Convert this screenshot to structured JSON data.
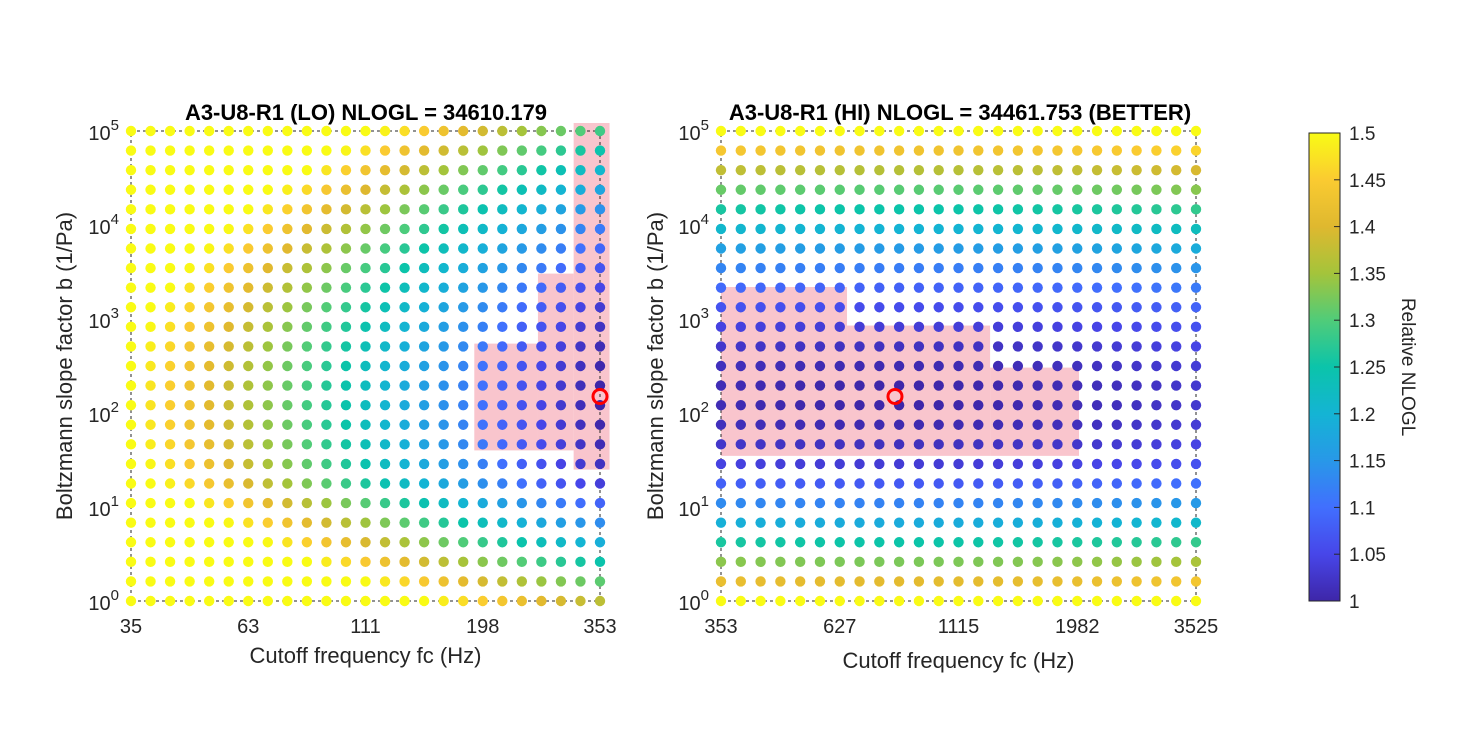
{
  "chart_data": [
    {
      "type": "scatter",
      "title": "A3-U8-R1 (LO) NLOGL = 34610.179",
      "xlabel": "Cutoff frequency fc (Hz)",
      "ylabel": "Boltzmann slope factor b (1/Pa)",
      "x_scale": "log",
      "y_scale": "log",
      "xlim": [
        35,
        353
      ],
      "ylim": [
        1,
        100000
      ],
      "x_ticks": [
        "35",
        "63",
        "111",
        "198",
        "353"
      ],
      "y_ticks": [
        {
          "base": "10",
          "exp": "0"
        },
        {
          "base": "10",
          "exp": "1"
        },
        {
          "base": "10",
          "exp": "2"
        },
        {
          "base": "10",
          "exp": "3"
        },
        {
          "base": "10",
          "exp": "4"
        },
        {
          "base": "10",
          "exp": "5"
        }
      ],
      "grid_points_x": 25,
      "grid_points_y": 25,
      "color_model": {
        "min_value": 1.0,
        "max_value": 1.5,
        "x_weight": 0.5,
        "b_optimum": 150,
        "b_weight": 0.09,
        "low_b_extra": 0.2,
        "fc_optimum": 353
      },
      "confidence_region": [
        {
          "x_range": [
            190,
            260
          ],
          "y_range": [
            40,
            450
          ]
        },
        {
          "x_range": [
            260,
            310
          ],
          "y_range": [
            40,
            2500
          ]
        },
        {
          "x_range": [
            310,
            370
          ],
          "y_range": [
            25,
            100000
          ]
        }
      ],
      "best_fit": {
        "x": 353,
        "y": 150
      },
      "grid": false
    },
    {
      "type": "scatter",
      "title": "A3-U8-R1 (HI) NLOGL = 34461.753 (BETTER)",
      "xlabel": "Cutoff frequency fc (Hz)",
      "ylabel": "Boltzmann slope factor b (1/Pa)",
      "x_scale": "log",
      "y_scale": "log",
      "xlim": [
        353,
        3525
      ],
      "ylim": [
        1,
        100000
      ],
      "x_ticks": [
        "353",
        "627",
        "1115",
        "1982",
        "3525"
      ],
      "y_ticks": [
        {
          "base": "10",
          "exp": "0"
        },
        {
          "base": "10",
          "exp": "1"
        },
        {
          "base": "10",
          "exp": "2"
        },
        {
          "base": "10",
          "exp": "3"
        },
        {
          "base": "10",
          "exp": "4"
        },
        {
          "base": "10",
          "exp": "5"
        }
      ],
      "grid_points_x": 25,
      "grid_points_y": 25,
      "color_model": {
        "min_value": 1.0,
        "max_value": 1.5,
        "fc_optimum": 820,
        "fc_weight": 0.018,
        "b_optimum": 150,
        "b_weight": 0.07,
        "low_b_extra": 0.2
      },
      "confidence_region": [
        {
          "x_range": [
            353,
            650
          ],
          "y_range": [
            35,
            1800
          ]
        },
        {
          "x_range": [
            650,
            1300
          ],
          "y_range": [
            35,
            700
          ]
        },
        {
          "x_range": [
            1300,
            2000
          ],
          "y_range": [
            35,
            250
          ]
        }
      ],
      "best_fit": {
        "x": 820,
        "y": 150
      },
      "grid": false
    }
  ],
  "colorbar": {
    "label": "Relative NLOGL",
    "ticks": [
      "1",
      "1.05",
      "1.1",
      "1.15",
      "1.2",
      "1.25",
      "1.3",
      "1.35",
      "1.4",
      "1.45",
      "1.5"
    ],
    "range": [
      1,
      1.5
    ],
    "colormap": "parula"
  },
  "colors": {
    "best_fit_marker": "#ff0000",
    "confidence_region": "#f7b6c0"
  }
}
